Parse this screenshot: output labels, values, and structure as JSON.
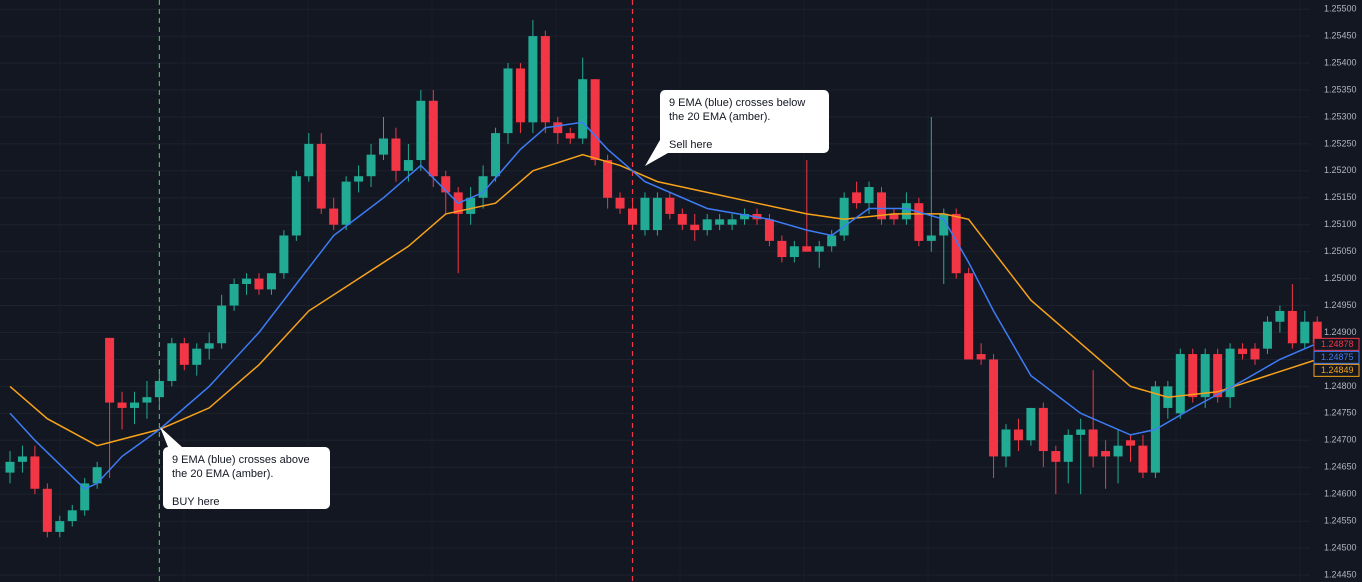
{
  "chart_data": {
    "type": "candlestick",
    "up_color": "#22ab94",
    "down_color": "#f23645",
    "open": [
      1.2464,
      1.2466,
      1.2467,
      1.2461,
      1.2453,
      1.2455,
      1.2457,
      1.2462,
      1.2489,
      1.2477,
      1.2476,
      1.2477,
      1.2478,
      1.2481,
      1.2488,
      1.2484,
      1.2487,
      1.2488,
      1.2495,
      1.2499,
      1.25,
      1.2498,
      1.2501,
      1.2508,
      1.2519,
      1.2525,
      1.2513,
      1.251,
      1.2518,
      1.2519,
      1.2523,
      1.2526,
      1.252,
      1.2522,
      1.2533,
      1.2519,
      1.2516,
      1.2512,
      1.2515,
      1.2519,
      1.2527,
      1.2539,
      1.2529,
      1.2545,
      1.2529,
      1.2527,
      1.2526,
      1.2537,
      1.2522,
      1.2515,
      1.2513,
      1.2509,
      1.2509,
      1.2515,
      1.2512,
      1.251,
      1.2509,
      1.251,
      1.251,
      1.2511,
      1.2512,
      1.2511,
      1.2507,
      1.2504,
      1.2506,
      1.2505,
      1.2506,
      1.2508,
      1.2516,
      1.2514,
      1.2516,
      1.2512,
      1.2511,
      1.2514,
      1.2507,
      1.2508,
      1.2512,
      1.2501,
      1.2486,
      1.2485,
      1.2467,
      1.2472,
      1.247,
      1.2476,
      1.2468,
      1.2466,
      1.2471,
      1.2472,
      1.2468,
      1.2467,
      1.247,
      1.2469,
      1.2464,
      1.2476,
      1.2475,
      1.2486,
      1.2478,
      1.2486,
      1.2478,
      1.2487,
      1.2487,
      1.2487,
      1.2492,
      1.2494,
      1.2488,
      1.2492
    ],
    "high": [
      1.2468,
      1.2469,
      1.2469,
      1.2462,
      1.2456,
      1.2458,
      1.2463,
      1.2466,
      1.2489,
      1.2479,
      1.2479,
      1.2481,
      1.2483,
      1.2489,
      1.2489,
      1.2488,
      1.249,
      1.2497,
      1.25,
      1.2501,
      1.2501,
      1.2501,
      1.2509,
      1.252,
      1.2527,
      1.2527,
      1.2515,
      1.2519,
      1.2521,
      1.2525,
      1.253,
      1.2528,
      1.2525,
      1.2535,
      1.2535,
      1.252,
      1.2517,
      1.2517,
      1.2521,
      1.2528,
      1.254,
      1.254,
      1.2548,
      1.2546,
      1.253,
      1.2528,
      1.2541,
      1.2537,
      1.2523,
      1.2516,
      1.2514,
      1.2516,
      1.2516,
      1.2516,
      1.2513,
      1.2512,
      1.2512,
      1.2512,
      1.2512,
      1.2513,
      1.2513,
      1.2512,
      1.2508,
      1.2507,
      1.2522,
      1.2507,
      1.2509,
      1.2516,
      1.2518,
      1.2518,
      1.2517,
      1.2513,
      1.2516,
      1.2515,
      1.253,
      1.2513,
      1.2513,
      1.2502,
      1.2488,
      1.2486,
      1.2473,
      1.2474,
      1.2476,
      1.2477,
      1.2469,
      1.2472,
      1.2474,
      1.2483,
      1.247,
      1.2472,
      1.2471,
      1.2471,
      1.2481,
      1.2481,
      1.2487,
      1.2487,
      1.2487,
      1.2487,
      1.2488,
      1.2488,
      1.2488,
      1.2493,
      1.2495,
      1.2499,
      1.2494,
      1.2493
    ],
    "low": [
      1.2462,
      1.2464,
      1.246,
      1.2452,
      1.2452,
      1.2454,
      1.2456,
      1.2461,
      1.2463,
      1.2472,
      1.2473,
      1.2474,
      1.2476,
      1.248,
      1.2483,
      1.2482,
      1.2485,
      1.2487,
      1.2494,
      1.2497,
      1.2497,
      1.2497,
      1.25,
      1.2507,
      1.2518,
      1.2512,
      1.2509,
      1.2509,
      1.2516,
      1.2517,
      1.2522,
      1.2518,
      1.2518,
      1.252,
      1.2517,
      1.2512,
      1.2501,
      1.251,
      1.2513,
      1.2518,
      1.2525,
      1.2527,
      1.2527,
      1.2527,
      1.2525,
      1.2525,
      1.2525,
      1.2521,
      1.2513,
      1.2512,
      1.2509,
      1.2508,
      1.2508,
      1.2511,
      1.2509,
      1.2507,
      1.2508,
      1.2509,
      1.2509,
      1.251,
      1.251,
      1.2506,
      1.2503,
      1.2503,
      1.2505,
      1.2502,
      1.2505,
      1.2507,
      1.2513,
      1.2512,
      1.251,
      1.251,
      1.251,
      1.2506,
      1.2505,
      1.2499,
      1.25,
      1.2485,
      1.2484,
      1.2463,
      1.2465,
      1.2468,
      1.2469,
      1.2465,
      1.246,
      1.2462,
      1.246,
      1.2465,
      1.2461,
      1.2462,
      1.2466,
      1.2463,
      1.2463,
      1.2474,
      1.2474,
      1.2477,
      1.2476,
      1.2477,
      1.2476,
      1.2485,
      1.2484,
      1.2486,
      1.249,
      1.2487,
      1.2487,
      1.2487
    ],
    "close": [
      1.2466,
      1.2467,
      1.2461,
      1.2453,
      1.2455,
      1.2457,
      1.2462,
      1.2465,
      1.2477,
      1.2476,
      1.2477,
      1.2478,
      1.2481,
      1.2488,
      1.2484,
      1.2487,
      1.2488,
      1.2495,
      1.2499,
      1.25,
      1.2498,
      1.2501,
      1.2508,
      1.2519,
      1.2525,
      1.2513,
      1.251,
      1.2518,
      1.2519,
      1.2523,
      1.2526,
      1.252,
      1.2522,
      1.2533,
      1.2519,
      1.2516,
      1.2512,
      1.2515,
      1.2519,
      1.2527,
      1.2539,
      1.2529,
      1.2545,
      1.2529,
      1.2527,
      1.2526,
      1.2537,
      1.2522,
      1.2515,
      1.2513,
      1.251,
      1.2515,
      1.2515,
      1.2512,
      1.251,
      1.2509,
      1.2511,
      1.2511,
      1.2511,
      1.2512,
      1.2511,
      1.2507,
      1.2504,
      1.2506,
      1.2505,
      1.2506,
      1.2508,
      1.2515,
      1.2514,
      1.2517,
      1.2511,
      1.2511,
      1.2514,
      1.2507,
      1.2508,
      1.2512,
      1.2501,
      1.2485,
      1.2485,
      1.2467,
      1.2472,
      1.247,
      1.2476,
      1.2468,
      1.2466,
      1.2471,
      1.2472,
      1.2467,
      1.2467,
      1.2469,
      1.2469,
      1.2464,
      1.248,
      1.248,
      1.2486,
      1.2478,
      1.2486,
      1.2478,
      1.2487,
      1.2486,
      1.2485,
      1.2492,
      1.2494,
      1.2488,
      1.2492,
      1.2488
    ],
    "lines": [
      {
        "color": "#f7a21b",
        "x": [
          0,
          3,
          7,
          12,
          16,
          20,
          24,
          28,
          32,
          35,
          39,
          42,
          46,
          49,
          52,
          56,
          60,
          64,
          67,
          71,
          75,
          77,
          79,
          82,
          86,
          90,
          93,
          97,
          101,
          105
        ],
        "values": [
          1.248,
          1.2474,
          1.2469,
          1.2472,
          1.2476,
          1.2484,
          1.2494,
          1.25,
          1.2506,
          1.2512,
          1.2514,
          1.252,
          1.2523,
          1.2521,
          1.2518,
          1.2516,
          1.2514,
          1.2512,
          1.2511,
          1.2512,
          1.2512,
          1.2511,
          1.2505,
          1.2496,
          1.2488,
          1.248,
          1.2478,
          1.2479,
          1.2482,
          1.2485
        ]
      },
      {
        "color": "#3d7cf5",
        "x": [
          0,
          2,
          6,
          7,
          9,
          12,
          16,
          20,
          23,
          26,
          30,
          33,
          36,
          38,
          41,
          43,
          46,
          48,
          51,
          56,
          61,
          64,
          66,
          69,
          72,
          75,
          77,
          79,
          82,
          86,
          90,
          92,
          95,
          99,
          102,
          105
        ],
        "values": [
          1.2475,
          1.247,
          1.2461,
          1.2462,
          1.2467,
          1.2472,
          1.248,
          1.249,
          1.2499,
          1.2508,
          1.2515,
          1.2521,
          1.2514,
          1.2516,
          1.2524,
          1.2528,
          1.2529,
          1.2524,
          1.2518,
          1.2513,
          1.2511,
          1.2509,
          1.2508,
          1.2513,
          1.2513,
          1.2511,
          1.2503,
          1.2494,
          1.2482,
          1.2475,
          1.2471,
          1.2472,
          1.2476,
          1.2481,
          1.2485,
          1.2488
        ]
      }
    ],
    "price_tags": [
      {
        "value": 1.24878,
        "color": "#f23645"
      },
      {
        "value": 1.24875,
        "color": "#3d7cf5"
      },
      {
        "value": 1.24849,
        "color": "#f7a21b"
      }
    ],
    "annotations": [
      {
        "x": 12,
        "color": "#4caf50",
        "lines": [
          "9 EMA (blue) crosses above",
          "the 20 EMA (amber).",
          "BUY here"
        ]
      },
      {
        "x": 50,
        "color": "#f23645",
        "lines": [
          "9 EMA (blue) crosses below",
          "the 20 EMA (amber).",
          "Sell here"
        ]
      }
    ],
    "ylim": [
      1.24437,
      1.25517
    ],
    "yticks": [
      {
        "value": 1.255,
        "label": "1.25500"
      },
      {
        "value": 1.2545,
        "label": "1.25450"
      },
      {
        "value": 1.254,
        "label": "1.25400"
      },
      {
        "value": 1.2535,
        "label": "1.25350"
      },
      {
        "value": 1.253,
        "label": "1.25300"
      },
      {
        "value": 1.2525,
        "label": "1.25250"
      },
      {
        "value": 1.252,
        "label": "1.25200"
      },
      {
        "value": 1.2515,
        "label": "1.25150"
      },
      {
        "value": 1.251,
        "label": "1.25100"
      },
      {
        "value": 1.2505,
        "label": "1.25050"
      },
      {
        "value": 1.25,
        "label": "1.25000"
      },
      {
        "value": 1.2495,
        "label": "1.24950"
      },
      {
        "value": 1.249,
        "label": "1.24900"
      },
      {
        "value": 1.2485,
        "label": "1.24850"
      },
      {
        "value": 1.248,
        "label": "1.24800"
      },
      {
        "value": 1.2475,
        "label": "1.24750"
      },
      {
        "value": 1.247,
        "label": "1.24700"
      },
      {
        "value": 1.2465,
        "label": "1.24650"
      },
      {
        "value": 1.246,
        "label": "1.24600"
      },
      {
        "value": 1.2455,
        "label": "1.24550"
      },
      {
        "value": 1.245,
        "label": "1.24500"
      },
      {
        "value": 1.2445,
        "label": "1.24450"
      }
    ],
    "grid": true
  }
}
